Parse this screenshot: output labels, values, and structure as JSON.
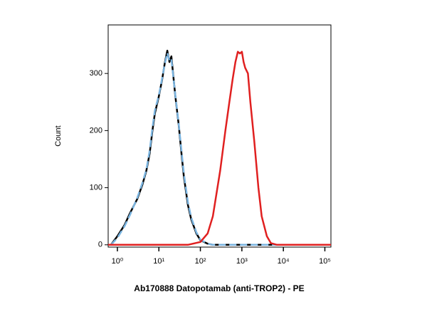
{
  "chart_data": {
    "type": "line",
    "x_label": "Ab170888 Datopotamab (anti-TROP2) - PE",
    "y_label": "Count",
    "xscale": "log",
    "xlim": [
      0.6,
      140000
    ],
    "ylim": [
      -4,
      385
    ],
    "xticks": [
      {
        "value": 1,
        "label": "10⁰"
      },
      {
        "value": 10,
        "label": "10¹"
      },
      {
        "value": 100,
        "label": "10²"
      },
      {
        "value": 1000,
        "label": "10³"
      },
      {
        "value": 10000,
        "label": "10⁴"
      },
      {
        "value": 100000,
        "label": "10⁵"
      }
    ],
    "yticks": [
      0,
      100,
      200,
      300
    ],
    "series": [
      {
        "color": "#000000",
        "dash": false,
        "x": [
          0.7,
          1,
          1.5,
          2,
          3,
          4,
          5,
          6,
          7,
          8,
          10,
          12,
          14,
          16,
          18,
          20,
          22,
          25,
          30,
          35,
          40,
          50,
          60,
          80,
          100,
          150,
          200,
          100000
        ],
        "values": [
          0,
          15,
          35,
          55,
          80,
          105,
          130,
          160,
          200,
          230,
          260,
          290,
          320,
          340,
          320,
          330,
          300,
          260,
          210,
          160,
          120,
          70,
          45,
          20,
          8,
          2,
          0,
          0
        ]
      },
      {
        "color": "#7ab4e0",
        "dash": true,
        "x": [
          0.7,
          1,
          1.5,
          2,
          3,
          4,
          5,
          6,
          7,
          8,
          10,
          12,
          14,
          16,
          18,
          20,
          22,
          25,
          30,
          35,
          40,
          50,
          60,
          80,
          100,
          150,
          200,
          100000
        ],
        "values": [
          0,
          12,
          33,
          52,
          82,
          108,
          132,
          165,
          205,
          235,
          262,
          292,
          318,
          336,
          322,
          325,
          298,
          262,
          212,
          165,
          125,
          75,
          48,
          22,
          9,
          2,
          0,
          0
        ]
      },
      {
        "color": "#e02020",
        "dash": false,
        "x": [
          0.6,
          50,
          100,
          150,
          200,
          300,
          400,
          500,
          600,
          700,
          800,
          900,
          1000,
          1100,
          1200,
          1400,
          1600,
          2000,
          2500,
          3000,
          4000,
          5000,
          7000,
          140000
        ],
        "values": [
          0,
          0,
          5,
          20,
          50,
          130,
          200,
          250,
          290,
          320,
          338,
          335,
          338,
          320,
          310,
          300,
          250,
          180,
          100,
          50,
          15,
          3,
          0,
          0
        ]
      }
    ]
  }
}
